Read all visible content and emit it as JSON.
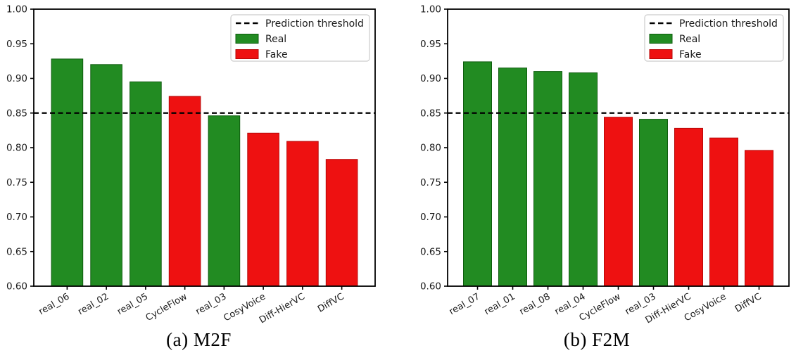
{
  "figure": {
    "background": "#ffffff",
    "description": "Two bar charts of prediction scores for real and fake voices"
  },
  "colors": {
    "real": "#228B22",
    "real_edge": "#0e5c0e",
    "fake": "#ee1111",
    "fake_edge": "#b70808",
    "axis": "#000000",
    "text": "#1a1a1a",
    "threshold_line": "#000000",
    "legend_bg": "#ffffff",
    "legend_border": "#cccccc"
  },
  "chart_data": [
    {
      "type": "bar",
      "caption": "(a) M2F",
      "categories": [
        "real_06",
        "real_02",
        "real_05",
        "CycleFlow",
        "real_03",
        "CosyVoice",
        "Diff-HierVC",
        "DiffVC"
      ],
      "values": [
        0.928,
        0.92,
        0.895,
        0.874,
        0.846,
        0.821,
        0.809,
        0.783
      ],
      "classes": [
        "real",
        "real",
        "real",
        "fake",
        "real",
        "fake",
        "fake",
        "fake"
      ],
      "ylim": [
        0.6,
        1.0
      ],
      "ytick_step": 0.05,
      "ytick_labels": [
        "0.60",
        "0.65",
        "0.70",
        "0.75",
        "0.80",
        "0.85",
        "0.90",
        "0.95",
        "1.00"
      ],
      "grid": false,
      "xlabel": "",
      "ylabel": "",
      "threshold": 0.85,
      "legend": {
        "position": "upper right",
        "entries": [
          {
            "handle": "dashed-line",
            "label": "Prediction threshold"
          },
          {
            "handle": "patch",
            "class": "real",
            "label": "Real"
          },
          {
            "handle": "patch",
            "class": "fake",
            "label": "Fake"
          }
        ]
      }
    },
    {
      "type": "bar",
      "caption": "(b) F2M",
      "categories": [
        "real_07",
        "real_01",
        "real_08",
        "real_04",
        "CycleFlow",
        "real_03",
        "Diff-HierVC",
        "CosyVoice",
        "DiffVC"
      ],
      "values": [
        0.924,
        0.915,
        0.91,
        0.908,
        0.844,
        0.841,
        0.828,
        0.814,
        0.796
      ],
      "classes": [
        "real",
        "real",
        "real",
        "real",
        "fake",
        "real",
        "fake",
        "fake",
        "fake"
      ],
      "ylim": [
        0.6,
        1.0
      ],
      "ytick_step": 0.05,
      "ytick_labels": [
        "0.60",
        "0.65",
        "0.70",
        "0.75",
        "0.80",
        "0.85",
        "0.90",
        "0.95",
        "1.00"
      ],
      "grid": false,
      "xlabel": "",
      "ylabel": "",
      "threshold": 0.85,
      "legend": {
        "position": "upper right",
        "entries": [
          {
            "handle": "dashed-line",
            "label": "Prediction threshold"
          },
          {
            "handle": "patch",
            "class": "real",
            "label": "Real"
          },
          {
            "handle": "patch",
            "class": "fake",
            "label": "Fake"
          }
        ]
      }
    }
  ]
}
